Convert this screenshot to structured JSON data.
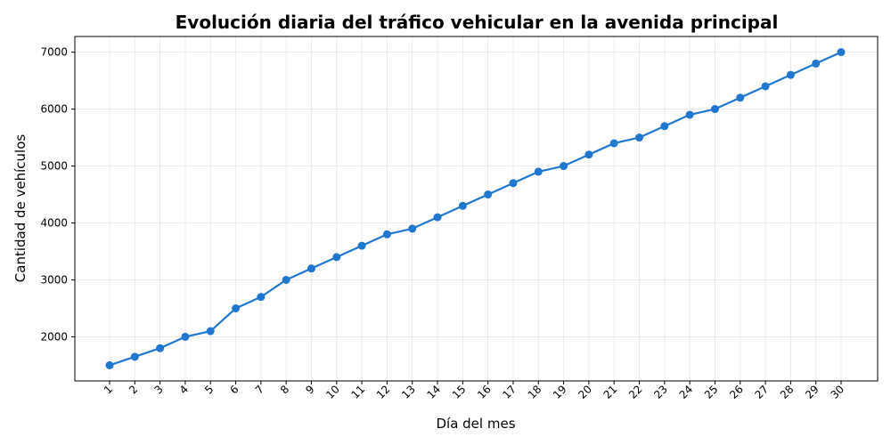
{
  "chart_data": {
    "type": "line",
    "title": "Evolución diaria del tráfico vehicular en la avenida principal",
    "xlabel": "Día del mes",
    "ylabel": "Cantidad de vehículos",
    "categories": [
      "1",
      "2",
      "3",
      "4",
      "5",
      "6",
      "7",
      "8",
      "9",
      "10",
      "11",
      "12",
      "13",
      "14",
      "15",
      "16",
      "17",
      "18",
      "19",
      "20",
      "21",
      "22",
      "23",
      "24",
      "25",
      "26",
      "27",
      "28",
      "29",
      "30"
    ],
    "series": [
      {
        "values": [
          1500,
          1650,
          1800,
          2000,
          2100,
          2500,
          2700,
          3000,
          3200,
          3400,
          3600,
          3800,
          3900,
          4100,
          4300,
          4500,
          4700,
          4900,
          5000,
          5200,
          5400,
          5500,
          5700,
          5900,
          6000,
          6200,
          6400,
          6600,
          6800,
          7000
        ],
        "color": "#1f77d0"
      }
    ],
    "yticks": [
      2000,
      3000,
      4000,
      5000,
      6000,
      7000
    ],
    "ylim": [
      1225,
      7275
    ],
    "grid": true,
    "legend": "none",
    "marker": "circle"
  }
}
